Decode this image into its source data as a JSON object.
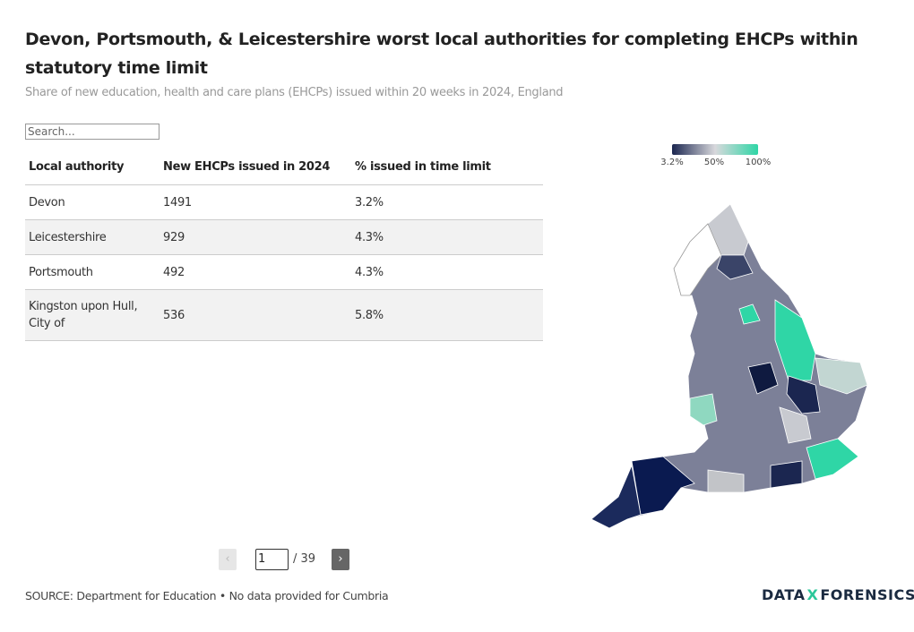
{
  "header": {
    "title": "Devon, Portsmouth, & Leicestershire worst local authorities for completing EHCPs within statutory time limit",
    "subtitle": "Share of new education, health and care plans (EHCPs) issued within 20 weeks in 2024, England"
  },
  "search": {
    "placeholder": "Search..."
  },
  "table": {
    "columns": [
      "Local authority",
      "New EHCPs issued in 2024",
      "% issued in time limit"
    ],
    "rows": [
      [
        "Devon",
        "1491",
        "3.2%"
      ],
      [
        "Leicestershire",
        "929",
        "4.3%"
      ],
      [
        "Portsmouth",
        "492",
        "4.3%"
      ],
      [
        "Kingston upon Hull, City of",
        "536",
        "5.8%"
      ]
    ]
  },
  "pagination": {
    "prev": "‹",
    "page": "1",
    "total": "/ 39",
    "next": "›"
  },
  "legend": {
    "labels": [
      "3.2%",
      "50%",
      "100%"
    ]
  },
  "footer": {
    "source": "SOURCE: Department for Education • No data provided for Cumbria",
    "logo": [
      "DATA",
      "X",
      "FORENSICS"
    ]
  }
}
